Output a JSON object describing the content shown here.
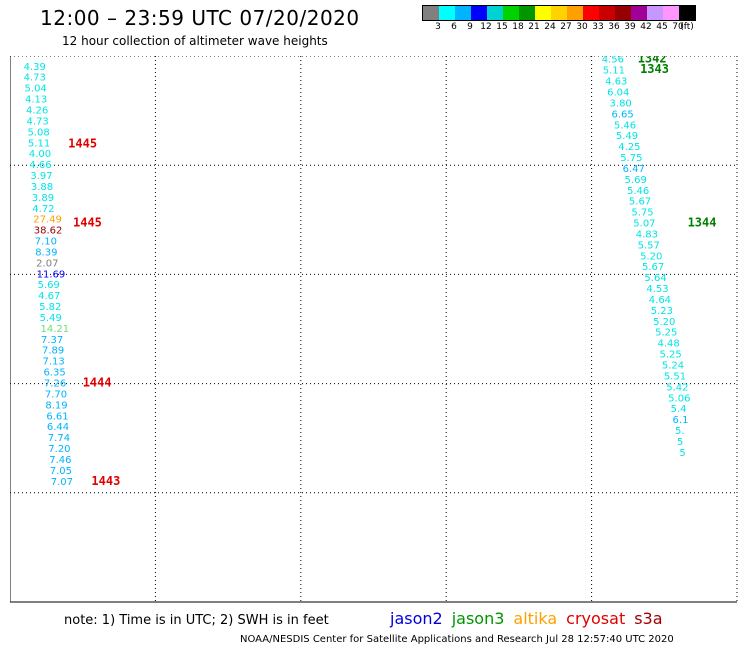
{
  "header": {
    "title": "12:00 – 23:59 UTC 07/20/2020",
    "subtitle": "12 hour collection of altimeter wave heights"
  },
  "color_scale": {
    "labels": [
      "3",
      "6",
      "9",
      "12",
      "15",
      "18",
      "21",
      "24",
      "27",
      "30",
      "33",
      "36",
      "39",
      "42",
      "45",
      "70",
      "(ft)"
    ],
    "colors": [
      "#808080",
      "#00ffff",
      "#00b4ff",
      "#0000ff",
      "#00d2d2",
      "#00d200",
      "#009600",
      "#ffff00",
      "#ffd200",
      "#ffa000",
      "#ff0000",
      "#c80000",
      "#960000",
      "#a00096",
      "#c896ff",
      "#ff96ff",
      "#000000"
    ]
  },
  "chart_data": {
    "type": "scatter",
    "x_ticks": [
      "-45",
      "-42",
      "-39",
      "-36",
      "-33",
      "-30"
    ],
    "y_ticks": [
      "0",
      "2",
      "4",
      "6",
      "8",
      "10"
    ],
    "xlim": [
      -45,
      -30
    ],
    "ylim": [
      0,
      10
    ],
    "tracks": [
      {
        "name": "left-track",
        "points": [
          {
            "x": -44.72,
            "y": 9.82,
            "v": "4.39",
            "c": "#00e5e5"
          },
          {
            "x": -44.72,
            "y": 9.62,
            "v": "4.73",
            "c": "#00e5e5"
          },
          {
            "x": -44.7,
            "y": 9.42,
            "v": "5.04",
            "c": "#00e5e5"
          },
          {
            "x": -44.69,
            "y": 9.22,
            "v": "4.13",
            "c": "#00e5e5"
          },
          {
            "x": -44.67,
            "y": 9.02,
            "v": "4.26",
            "c": "#00e5e5"
          },
          {
            "x": -44.66,
            "y": 8.82,
            "v": "4.73",
            "c": "#00e5e5"
          },
          {
            "x": -44.64,
            "y": 8.62,
            "v": "5.08",
            "c": "#00e5e5"
          },
          {
            "x": -44.63,
            "y": 8.42,
            "v": "5.11",
            "c": "#00e5e5"
          },
          {
            "x": -44.61,
            "y": 8.22,
            "v": "4.00",
            "c": "#00e5e5"
          },
          {
            "x": -44.6,
            "y": 8.02,
            "v": "4.66",
            "c": "#00e5e5"
          },
          {
            "x": -44.58,
            "y": 7.82,
            "v": "3.97",
            "c": "#00e5e5"
          },
          {
            "x": -44.57,
            "y": 7.62,
            "v": "3.88",
            "c": "#00e5e5"
          },
          {
            "x": -44.55,
            "y": 7.42,
            "v": "3.89",
            "c": "#00e5e5"
          },
          {
            "x": -44.54,
            "y": 7.22,
            "v": "4.72",
            "c": "#00e5e5"
          },
          {
            "x": -44.52,
            "y": 7.02,
            "v": "27.49",
            "c": "#ffa000"
          },
          {
            "x": -44.51,
            "y": 6.82,
            "v": "38.62",
            "c": "#960000"
          },
          {
            "x": -44.49,
            "y": 6.62,
            "v": "7.10",
            "c": "#00b4ff"
          },
          {
            "x": -44.48,
            "y": 6.42,
            "v": "8.39",
            "c": "#00b4ff"
          },
          {
            "x": -44.46,
            "y": 6.22,
            "v": "2.07",
            "c": "#808080"
          },
          {
            "x": -44.45,
            "y": 6.02,
            "v": "11.69",
            "c": "#0000ff"
          },
          {
            "x": -44.43,
            "y": 5.82,
            "v": "5.69",
            "c": "#00e5e5"
          },
          {
            "x": -44.42,
            "y": 5.62,
            "v": "4.67",
            "c": "#00e5e5"
          },
          {
            "x": -44.4,
            "y": 5.42,
            "v": "5.82",
            "c": "#00e5e5"
          },
          {
            "x": -44.39,
            "y": 5.22,
            "v": "5.49",
            "c": "#00e5e5"
          },
          {
            "x": -44.37,
            "y": 5.02,
            "v": "14.21",
            "c": "#70e070"
          },
          {
            "x": -44.36,
            "y": 4.82,
            "v": "7.37",
            "c": "#00b4ff"
          },
          {
            "x": -44.34,
            "y": 4.62,
            "v": "7.89",
            "c": "#00b4ff"
          },
          {
            "x": -44.33,
            "y": 4.42,
            "v": "7.13",
            "c": "#00b4ff"
          },
          {
            "x": -44.31,
            "y": 4.22,
            "v": "6.35",
            "c": "#00b4ff"
          },
          {
            "x": -44.3,
            "y": 4.02,
            "v": "7.26",
            "c": "#00b4ff"
          },
          {
            "x": -44.28,
            "y": 3.82,
            "v": "7.70",
            "c": "#00b4ff"
          },
          {
            "x": -44.27,
            "y": 3.62,
            "v": "8.19",
            "c": "#00b4ff"
          },
          {
            "x": -44.25,
            "y": 3.42,
            "v": "6.61",
            "c": "#00b4ff"
          },
          {
            "x": -44.24,
            "y": 3.22,
            "v": "6.44",
            "c": "#00b4ff"
          },
          {
            "x": -44.22,
            "y": 3.02,
            "v": "7.74",
            "c": "#00b4ff"
          },
          {
            "x": -44.21,
            "y": 2.82,
            "v": "7.20",
            "c": "#00b4ff"
          },
          {
            "x": -44.19,
            "y": 2.62,
            "v": "7.46",
            "c": "#00b4ff"
          },
          {
            "x": -44.18,
            "y": 2.42,
            "v": "7.05",
            "c": "#00b4ff"
          },
          {
            "x": -44.16,
            "y": 2.22,
            "v": "7.07",
            "c": "#00b4ff"
          }
        ]
      },
      {
        "name": "right-track",
        "points": [
          {
            "x": -32.79,
            "y": 9.95,
            "v": "4.56",
            "c": "#00e5e5"
          },
          {
            "x": -32.77,
            "y": 9.75,
            "v": "5.11",
            "c": "#00e5e5"
          },
          {
            "x": -32.72,
            "y": 9.55,
            "v": "4.63",
            "c": "#00e5e5"
          },
          {
            "x": -32.68,
            "y": 9.35,
            "v": "6.04",
            "c": "#00e5e5"
          },
          {
            "x": -32.63,
            "y": 9.15,
            "v": "3.80",
            "c": "#00e5e5"
          },
          {
            "x": -32.59,
            "y": 8.95,
            "v": "6.65",
            "c": "#00b4ff"
          },
          {
            "x": -32.54,
            "y": 8.75,
            "v": "5.46",
            "c": "#00e5e5"
          },
          {
            "x": -32.5,
            "y": 8.55,
            "v": "5.49",
            "c": "#00e5e5"
          },
          {
            "x": -32.45,
            "y": 8.35,
            "v": "4.25",
            "c": "#00e5e5"
          },
          {
            "x": -32.41,
            "y": 8.15,
            "v": "5.75",
            "c": "#00e5e5"
          },
          {
            "x": -32.36,
            "y": 7.95,
            "v": "6.47",
            "c": "#00b4ff"
          },
          {
            "x": -32.32,
            "y": 7.75,
            "v": "5.69",
            "c": "#00e5e5"
          },
          {
            "x": -32.27,
            "y": 7.55,
            "v": "5.46",
            "c": "#00e5e5"
          },
          {
            "x": -32.23,
            "y": 7.35,
            "v": "5.67",
            "c": "#00e5e5"
          },
          {
            "x": -32.18,
            "y": 7.15,
            "v": "5.75",
            "c": "#00e5e5"
          },
          {
            "x": -32.14,
            "y": 6.95,
            "v": "5.07",
            "c": "#00e5e5"
          },
          {
            "x": -32.09,
            "y": 6.75,
            "v": "4.83",
            "c": "#00e5e5"
          },
          {
            "x": -32.05,
            "y": 6.55,
            "v": "5.57",
            "c": "#00e5e5"
          },
          {
            "x": -32.0,
            "y": 6.35,
            "v": "5.20",
            "c": "#00e5e5"
          },
          {
            "x": -31.96,
            "y": 6.15,
            "v": "5.67",
            "c": "#00e5e5"
          },
          {
            "x": -31.91,
            "y": 5.95,
            "v": "5.64",
            "c": "#00e5e5"
          },
          {
            "x": -31.87,
            "y": 5.75,
            "v": "4.53",
            "c": "#00e5e5"
          },
          {
            "x": -31.82,
            "y": 5.55,
            "v": "4.64",
            "c": "#00e5e5"
          },
          {
            "x": -31.78,
            "y": 5.35,
            "v": "5.23",
            "c": "#00e5e5"
          },
          {
            "x": -31.73,
            "y": 5.15,
            "v": "5.20",
            "c": "#00e5e5"
          },
          {
            "x": -31.69,
            "y": 4.95,
            "v": "5.25",
            "c": "#00e5e5"
          },
          {
            "x": -31.64,
            "y": 4.75,
            "v": "4.48",
            "c": "#00e5e5"
          },
          {
            "x": -31.6,
            "y": 4.55,
            "v": "5.25",
            "c": "#00e5e5"
          },
          {
            "x": -31.55,
            "y": 4.35,
            "v": "5.24",
            "c": "#00e5e5"
          },
          {
            "x": -31.51,
            "y": 4.15,
            "v": "5.51",
            "c": "#00e5e5"
          },
          {
            "x": -31.46,
            "y": 3.95,
            "v": "5.42",
            "c": "#00e5e5"
          },
          {
            "x": -31.42,
            "y": 3.75,
            "v": "5.06",
            "c": "#00e5e5"
          },
          {
            "x": -31.37,
            "y": 3.55,
            "v": "5.4",
            "c": "#00e5e5"
          },
          {
            "x": -31.33,
            "y": 3.35,
            "v": "6.1",
            "c": "#00b4ff"
          },
          {
            "x": -31.28,
            "y": 3.15,
            "v": "5.",
            "c": "#00e5e5"
          },
          {
            "x": -31.24,
            "y": 2.95,
            "v": "5",
            "c": "#00e5e5"
          },
          {
            "x": -31.19,
            "y": 2.75,
            "v": "5",
            "c": "#00e5e5"
          }
        ]
      }
    ],
    "pass_labels": [
      {
        "text": "1445",
        "x": -43.8,
        "y": 8.4,
        "c": "#e00000"
      },
      {
        "text": "1445",
        "x": -43.7,
        "y": 6.95,
        "c": "#e00000"
      },
      {
        "text": "1444",
        "x": -43.5,
        "y": 4.02,
        "c": "#e00000"
      },
      {
        "text": "1443",
        "x": -43.32,
        "y": 2.22,
        "c": "#e00000"
      },
      {
        "text": "1342",
        "x": -32.05,
        "y": 9.95,
        "c": "#008000"
      },
      {
        "text": "1343",
        "x": -32.0,
        "y": 9.76,
        "c": "#008000"
      },
      {
        "text": "1344",
        "x": -31.02,
        "y": 6.95,
        "c": "#008000"
      }
    ]
  },
  "note": "note:  1) Time is in UTC;  2) SWH is in feet",
  "missions": [
    {
      "name": "jason2",
      "color": "#0000dd"
    },
    {
      "name": "jason3",
      "color": "#009600"
    },
    {
      "name": "altika",
      "color": "#ffa000"
    },
    {
      "name": "cryosat",
      "color": "#e00000"
    },
    {
      "name": "s3a",
      "color": "#a00000"
    }
  ],
  "footer": "NOAA/NESDIS Center for Satellite Applications and Research    Jul 28 12:57:40 UTC 2020"
}
